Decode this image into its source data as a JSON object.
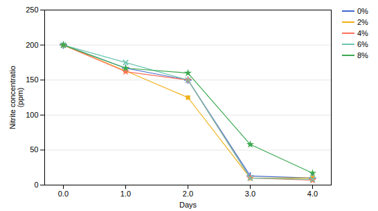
{
  "chart_data": {
    "type": "line",
    "xlabel": "Days",
    "ylabel": "Nitrite concentratio\n(ppm)",
    "x": [
      0,
      1,
      2,
      3,
      4
    ],
    "series": [
      {
        "name": "0%",
        "values": [
          200,
          167,
          150,
          13,
          10
        ],
        "marker": "plus"
      },
      {
        "name": "2%",
        "values": [
          200,
          163,
          125,
          10,
          10
        ],
        "marker": "square"
      },
      {
        "name": "4%",
        "values": [
          200,
          162,
          150,
          10,
          7
        ],
        "marker": "star"
      },
      {
        "name": "6%",
        "values": [
          200,
          175,
          150,
          10,
          8
        ],
        "marker": "times"
      },
      {
        "name": "8%",
        "values": [
          200,
          167,
          160,
          58,
          17
        ],
        "marker": "star"
      }
    ],
    "xlim": [
      -0.3,
      4.3
    ],
    "xticks": [
      0,
      1,
      2,
      3,
      4
    ],
    "ylim": [
      0,
      250
    ],
    "yticks": [
      0,
      50,
      100,
      150,
      200,
      250
    ],
    "grid": true,
    "legend": "right"
  }
}
